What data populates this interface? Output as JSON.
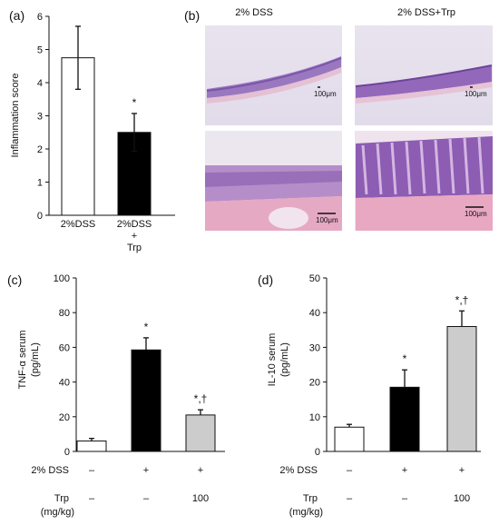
{
  "chart_data": [
    {
      "panel_label": "(a)",
      "type": "bar",
      "ylabel": "Inflammation score",
      "ylim": [
        0,
        6
      ],
      "yticks": [
        0,
        1,
        2,
        3,
        4,
        5,
        6
      ],
      "categories": [
        {
          "lines": [
            "2%DSS"
          ]
        },
        {
          "lines": [
            "2%DSS",
            "+",
            "Trp"
          ]
        }
      ],
      "values": [
        4.75,
        2.5
      ],
      "errors": [
        0.95,
        0.57
      ],
      "colors": [
        "#ffffff",
        "#000000"
      ],
      "annotations": [
        "",
        "*"
      ]
    },
    {
      "panel_label": "(c)",
      "type": "bar",
      "ylabel_lines": [
        "TNF-α serum",
        "(pg/mL)"
      ],
      "ylim": [
        0,
        100
      ],
      "yticks": [
        0,
        20,
        40,
        60,
        80,
        100
      ],
      "values": [
        6,
        58.5,
        21
      ],
      "errors": [
        1.5,
        7,
        3
      ],
      "colors": [
        "#ffffff",
        "#000000",
        "#cccccc"
      ],
      "annotations": [
        "",
        "*",
        "*,†"
      ],
      "conditions": [
        {
          "label": "2% DSS",
          "values": [
            "–",
            "+",
            "+"
          ]
        },
        {
          "label": "Trp",
          "sublabel": "(mg/kg)",
          "values": [
            "–",
            "–",
            "100"
          ]
        }
      ]
    },
    {
      "panel_label": "(d)",
      "type": "bar",
      "ylabel_lines": [
        "IL-10 serum",
        "(pg/mL)"
      ],
      "ylim": [
        0,
        50
      ],
      "yticks": [
        0,
        10,
        20,
        30,
        40,
        50
      ],
      "values": [
        7,
        18.5,
        36
      ],
      "errors": [
        0.8,
        5,
        4.5
      ],
      "colors": [
        "#ffffff",
        "#000000",
        "#cccccc"
      ],
      "annotations": [
        "",
        "*",
        "*,†"
      ],
      "conditions": [
        {
          "label": "2% DSS",
          "values": [
            "–",
            "+",
            "+"
          ]
        },
        {
          "label": "Trp",
          "sublabel": "(mg/kg)",
          "values": [
            "–",
            "–",
            "100"
          ]
        }
      ]
    }
  ],
  "histology": {
    "panel_label": "(b)",
    "columns": [
      "2% DSS",
      "2% DSS+Trp"
    ],
    "scale_label": "100μm"
  }
}
